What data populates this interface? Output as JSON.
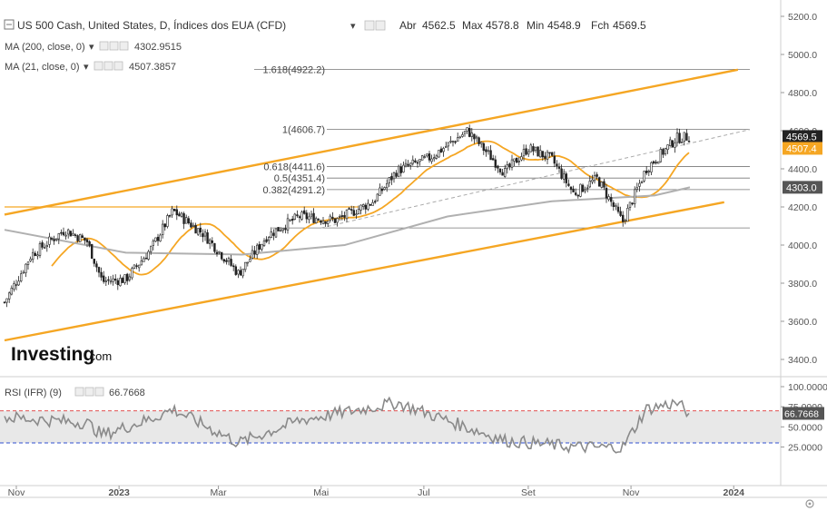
{
  "header": {
    "title": "US 500 Cash, United States, D, Índices dos EUA (CFD)",
    "ohlc": [
      {
        "label": "Abr",
        "value": "4562.5"
      },
      {
        "label": "Max",
        "value": "4578.8"
      },
      {
        "label": "Min",
        "value": "4548.9"
      },
      {
        "label": "Fch",
        "value": "4569.5"
      }
    ]
  },
  "indicators": [
    {
      "label": "MA (200, close, 0)",
      "value": "4302.9515",
      "color": "#b0b0b0"
    },
    {
      "label": "MA (21, close, 0)",
      "value": "4507.3857",
      "color": "#f5a623"
    }
  ],
  "fib_labels": [
    {
      "text": "1.618(4922.2)",
      "level": 4922.2
    },
    {
      "text": "1(4606.7)",
      "level": 4606.7
    },
    {
      "text": "0.618(4411.6)",
      "level": 4411.6
    },
    {
      "text": "0.5(4351.4)",
      "level": 4351.4
    },
    {
      "text": "0.382(4291.2)",
      "level": 4291.2
    }
  ],
  "price_badges": [
    {
      "text": "4569.5",
      "color": "#222222",
      "level": 4569.5
    },
    {
      "text": "4507.4",
      "color": "#f5a623",
      "level": 4507.4
    },
    {
      "text": "4303.0",
      "color": "#555555",
      "level": 4303.0
    }
  ],
  "rsi": {
    "label": "RSI (IFR) (9)",
    "value": "66.7668",
    "badge": "66.7668",
    "overbought": 70,
    "oversold": 30
  },
  "logo": {
    "main": "Investing",
    "suffix": ".com"
  },
  "colors": {
    "channel": "#f5a623",
    "ma21": "#f5a623",
    "ma200": "#b0b0b0",
    "candle": "#222222",
    "rsi_line": "#8a8a8a",
    "ob_line": "#e05050",
    "os_line": "#3050d0"
  },
  "chart_data": {
    "type": "candlestick",
    "title": "US 500 Cash, United States, D, Índices dos EUA (CFD)",
    "y_axis_ticks": [
      "5200.0",
      "5000.0",
      "4800.0",
      "4600.0",
      "4400.0",
      "4200.0",
      "4000.0",
      "3800.0",
      "3600.0",
      "3400.0"
    ],
    "ylim": [
      3330,
      5230
    ],
    "x_axis_ticks": [
      "Nov",
      "2023",
      "Mar",
      "Mai",
      "Jul",
      "Set",
      "Nov",
      "2024"
    ],
    "rsi_axis_ticks": [
      "100.0000",
      "75.0000",
      "50.0000",
      "25.0000"
    ],
    "price_path": [
      {
        "date": "2022-10-25",
        "close": 3700
      },
      {
        "date": "2022-11-10",
        "close": 3950
      },
      {
        "date": "2022-11-30",
        "close": 4080
      },
      {
        "date": "2022-12-13",
        "close": 4020
      },
      {
        "date": "2022-12-22",
        "close": 3810
      },
      {
        "date": "2023-01-05",
        "close": 3820
      },
      {
        "date": "2023-01-20",
        "close": 3980
      },
      {
        "date": "2023-02-02",
        "close": 4180
      },
      {
        "date": "2023-02-20",
        "close": 4060
      },
      {
        "date": "2023-03-13",
        "close": 3850
      },
      {
        "date": "2023-03-30",
        "close": 4050
      },
      {
        "date": "2023-04-18",
        "close": 4150
      },
      {
        "date": "2023-05-10",
        "close": 4130
      },
      {
        "date": "2023-06-01",
        "close": 4230
      },
      {
        "date": "2023-06-15",
        "close": 4390
      },
      {
        "date": "2023-07-05",
        "close": 4460
      },
      {
        "date": "2023-07-27",
        "close": 4600
      },
      {
        "date": "2023-08-18",
        "close": 4380
      },
      {
        "date": "2023-09-01",
        "close": 4510
      },
      {
        "date": "2023-09-15",
        "close": 4450
      },
      {
        "date": "2023-09-28",
        "close": 4270
      },
      {
        "date": "2023-10-12",
        "close": 4350
      },
      {
        "date": "2023-10-27",
        "close": 4120
      },
      {
        "date": "2023-11-10",
        "close": 4400
      },
      {
        "date": "2023-11-28",
        "close": 4560
      },
      {
        "date": "2023-12-06",
        "close": 4569.5
      }
    ],
    "ma200_path": [
      {
        "date": "2022-10-25",
        "value": 4080
      },
      {
        "date": "2023-01-05",
        "value": 3960
      },
      {
        "date": "2023-03-15",
        "value": 3950
      },
      {
        "date": "2023-05-15",
        "value": 4000
      },
      {
        "date": "2023-07-15",
        "value": 4150
      },
      {
        "date": "2023-09-15",
        "value": 4230
      },
      {
        "date": "2023-11-15",
        "value": 4260
      },
      {
        "date": "2023-12-06",
        "value": 4303.0
      }
    ],
    "ma21_end": 4507.4,
    "channel_upper": [
      {
        "date": "2022-10-25",
        "value": 4160
      },
      {
        "date": "2023-12-06",
        "value": 4870
      }
    ],
    "channel_lower": [
      {
        "date": "2022-10-25",
        "value": 3500
      },
      {
        "date": "2023-12-06",
        "value": 4190
      }
    ],
    "dashed_trend": [
      {
        "date": "2023-05-01",
        "value": 4090
      },
      {
        "date": "2023-12-06",
        "value": 4606
      }
    ],
    "horizontal_line": {
      "value": 4200
    },
    "fib_levels": [
      4922.2,
      4606.7,
      4411.6,
      4351.4,
      4291.2,
      4090
    ],
    "rsi_path": [
      {
        "date": "2022-10-25",
        "value": 62
      },
      {
        "date": "2022-12-13",
        "value": 55
      },
      {
        "date": "2022-12-22",
        "value": 40
      },
      {
        "date": "2023-01-20",
        "value": 60
      },
      {
        "date": "2023-02-02",
        "value": 72
      },
      {
        "date": "2023-03-13",
        "value": 30
      },
      {
        "date": "2023-04-18",
        "value": 58
      },
      {
        "date": "2023-06-15",
        "value": 80
      },
      {
        "date": "2023-08-18",
        "value": 33
      },
      {
        "date": "2023-09-28",
        "value": 25
      },
      {
        "date": "2023-10-27",
        "value": 24
      },
      {
        "date": "2023-11-10",
        "value": 72
      },
      {
        "date": "2023-11-28",
        "value": 80
      },
      {
        "date": "2023-12-06",
        "value": 66.7668
      }
    ]
  }
}
